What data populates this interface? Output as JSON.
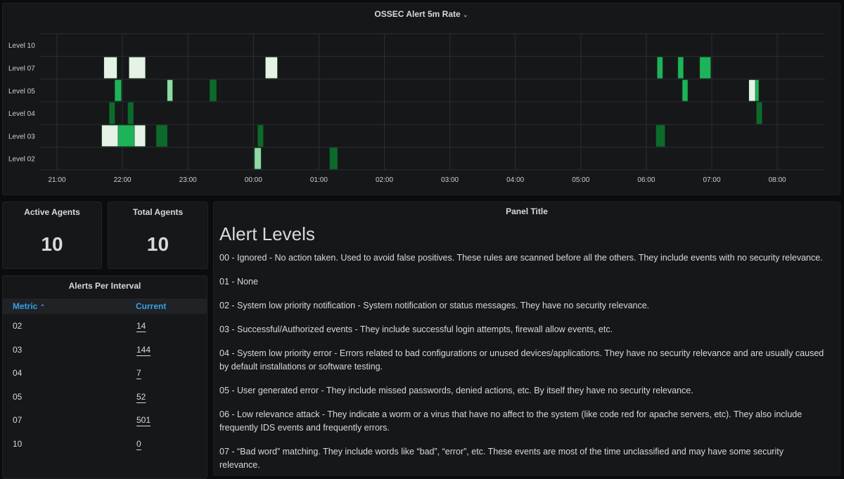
{
  "heatmap": {
    "title": "OSSEC Alert 5m Rate",
    "levels": [
      "Level 10",
      "Level 07",
      "Level 05",
      "Level 04",
      "Level 03",
      "Level 02"
    ],
    "x_ticks": [
      "21:00",
      "22:00",
      "23:00",
      "00:00",
      "01:00",
      "02:00",
      "03:00",
      "04:00",
      "05:00",
      "06:00",
      "07:00",
      "08:00"
    ],
    "colors": {
      "high": "#e6f2e6",
      "medium_high": "#8fd9a4",
      "medium": "#1eb35a",
      "low": "#0c6a2b"
    },
    "cells": [
      {
        "level": "Level 07",
        "start": "21:43",
        "end": "21:55",
        "intensity": "high"
      },
      {
        "level": "Level 07",
        "start": "22:06",
        "end": "22:21",
        "intensity": "high"
      },
      {
        "level": "Level 07",
        "start": "00:11",
        "end": "00:22",
        "intensity": "high"
      },
      {
        "level": "Level 07",
        "start": "06:10",
        "end": "06:15",
        "intensity": "medium"
      },
      {
        "level": "Level 07",
        "start": "06:29",
        "end": "06:34",
        "intensity": "medium"
      },
      {
        "level": "Level 07",
        "start": "06:49",
        "end": "06:59",
        "intensity": "medium"
      },
      {
        "level": "Level 05",
        "start": "21:53",
        "end": "21:59",
        "intensity": "medium"
      },
      {
        "level": "Level 05",
        "start": "22:41",
        "end": "22:46",
        "intensity": "medium_high"
      },
      {
        "level": "Level 05",
        "start": "23:20",
        "end": "23:26",
        "intensity": "low"
      },
      {
        "level": "Level 05",
        "start": "06:33",
        "end": "06:38",
        "intensity": "medium"
      },
      {
        "level": "Level 05",
        "start": "07:34",
        "end": "07:40",
        "intensity": "high"
      },
      {
        "level": "Level 05",
        "start": "07:40",
        "end": "07:43",
        "intensity": "medium"
      },
      {
        "level": "Level 04",
        "start": "21:48",
        "end": "21:53",
        "intensity": "low"
      },
      {
        "level": "Level 04",
        "start": "22:05",
        "end": "22:10",
        "intensity": "low"
      },
      {
        "level": "Level 04",
        "start": "07:41",
        "end": "07:46",
        "intensity": "low"
      },
      {
        "level": "Level 03",
        "start": "21:41",
        "end": "21:56",
        "intensity": "high"
      },
      {
        "level": "Level 03",
        "start": "21:56",
        "end": "22:11",
        "intensity": "medium"
      },
      {
        "level": "Level 03",
        "start": "22:11",
        "end": "22:21",
        "intensity": "high"
      },
      {
        "level": "Level 03",
        "start": "22:31",
        "end": "22:41",
        "intensity": "low"
      },
      {
        "level": "Level 03",
        "start": "00:04",
        "end": "00:09",
        "intensity": "low"
      },
      {
        "level": "Level 03",
        "start": "06:09",
        "end": "06:17",
        "intensity": "low"
      },
      {
        "level": "Level 02",
        "start": "00:01",
        "end": "00:07",
        "intensity": "medium_high"
      },
      {
        "level": "Level 02",
        "start": "01:10",
        "end": "01:17",
        "intensity": "low"
      }
    ]
  },
  "active_agents": {
    "title": "Active Agents",
    "value": "10"
  },
  "total_agents": {
    "title": "Total Agents",
    "value": "10"
  },
  "alerts_table": {
    "title": "Alerts Per Interval",
    "col_metric": "Metric",
    "sort_icon": "chevron-up-icon",
    "col_current": "Current",
    "rows": [
      {
        "metric": "02",
        "current": "14"
      },
      {
        "metric": "03",
        "current": "144"
      },
      {
        "metric": "04",
        "current": "7"
      },
      {
        "metric": "05",
        "current": "52"
      },
      {
        "metric": "07",
        "current": "501"
      },
      {
        "metric": "10",
        "current": "0"
      }
    ]
  },
  "text_panel": {
    "title": "Panel Title",
    "heading": "Alert Levels",
    "paragraphs": [
      "00 - Ignored - No action taken. Used to avoid false positives. These rules are scanned before all the others. They include events with no security relevance.",
      "01 - None",
      "02 - System low priority notification - System notification or status messages. They have no security relevance.",
      "03 - Successful/Authorized events - They include successful login attempts, firewall allow events, etc.",
      "04 - System low priority error - Errors related to bad configurations or unused devices/applications. They have no security relevance and are usually caused by default installations or software testing.",
      "05 - User generated error - They include missed passwords, denied actions, etc. By itself they have no security relevance.",
      "06 - Low relevance attack - They indicate a worm or a virus that have no affect to the system (like code red for apache servers, etc). They also include frequently IDS events and frequently errors.",
      "07 - “Bad word” matching. They include words like “bad”, “error”, etc. These events are most of the time unclassified and may have some security relevance."
    ]
  }
}
